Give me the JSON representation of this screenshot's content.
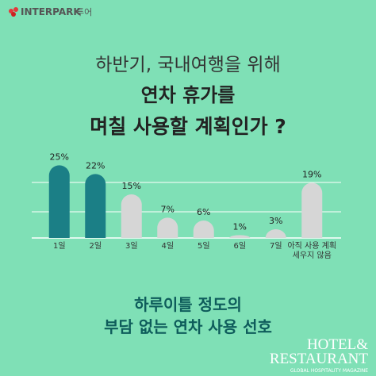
{
  "header": {
    "logo": "INTERPARK",
    "logo_suffix": "투어"
  },
  "chart_data": {
    "type": "bar",
    "title_lines": [
      "하반기, 국내여행을 위해",
      "연차 휴가를",
      "며칠 사용할 계획인가 ?"
    ],
    "categories": [
      "1일",
      "2일",
      "3일",
      "4일",
      "5일",
      "6일",
      "7일",
      "아직 사용 계획 세우지 않음"
    ],
    "values": [
      25,
      22,
      15,
      7,
      6,
      1,
      3,
      19
    ],
    "value_labels": [
      "25%",
      "22%",
      "15%",
      "7%",
      "6%",
      "1%",
      "3%",
      "19%"
    ],
    "colors": [
      "#1b7f86",
      "#1b7f86",
      "#d6d6d6",
      "#d6d6d6",
      "#d6d6d6",
      "#d6d6d6",
      "#d6d6d6",
      "#d6d6d6"
    ],
    "ylim": [
      0,
      30
    ],
    "caption_lines": [
      "하루이틀 정도의",
      "부담 없는 연차 사용 선호"
    ]
  },
  "footer": {
    "brand_line1": "HOTEL&",
    "brand_line2": "RESTAURANT",
    "brand_tagline": "GLOBAL HOSPITALITY MAGAZINE"
  }
}
